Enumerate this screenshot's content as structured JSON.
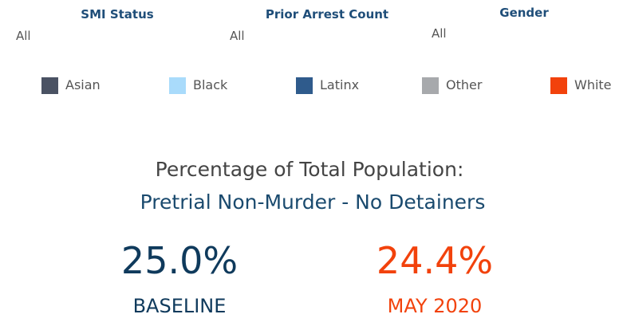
{
  "filters": [
    {
      "title": "SMI Status",
      "value": "All"
    },
    {
      "title": "Prior Arrest Count",
      "value": "All"
    },
    {
      "title": "Gender",
      "value": "All"
    }
  ],
  "legend": [
    {
      "name": "Asian",
      "color": "#4a5263"
    },
    {
      "name": "Black",
      "color": "#a9dbfb"
    },
    {
      "name": "Latinx",
      "color": "#2f5b8c"
    },
    {
      "name": "Other",
      "color": "#a7a9ac"
    },
    {
      "name": "White",
      "color": "#f2420c"
    }
  ],
  "title": {
    "line1": "Percentage of Total Population:",
    "line2": "Pretrial Non-Murder - No Detainers"
  },
  "kpis": [
    {
      "value": "25.0%",
      "label": "BASELINE",
      "color": "#0f3a5c"
    },
    {
      "value": "24.4%",
      "label": "MAY 2020",
      "color": "#f2420c"
    }
  ]
}
